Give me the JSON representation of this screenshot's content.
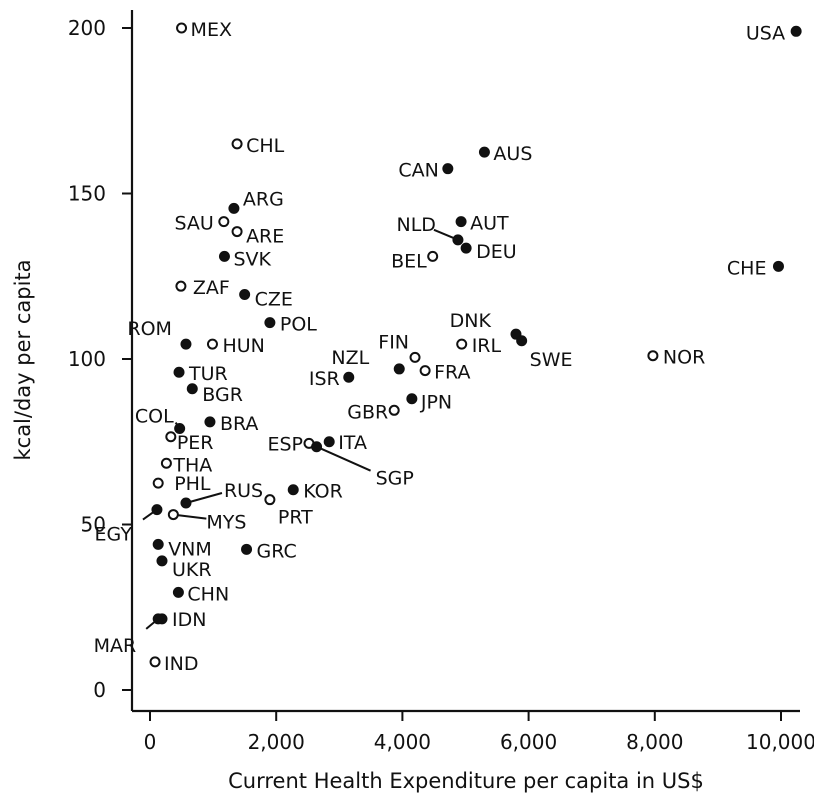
{
  "chart_data": {
    "type": "scatter",
    "title": "",
    "xlabel": "Current Health Expenditure per capita in US$",
    "ylabel": "kcal/day per capita",
    "xlim": [
      -300,
      10500
    ],
    "ylim": [
      -6,
      205
    ],
    "x_ticks": [
      0,
      2000,
      4000,
      6000,
      8000,
      10000
    ],
    "x_tick_labels": [
      "0",
      "2,000",
      "4,000",
      "6,000",
      "8,000",
      "10,000"
    ],
    "y_ticks": [
      0,
      50,
      100,
      150,
      200
    ],
    "y_tick_labels": [
      "0",
      "50",
      "100",
      "150",
      "200"
    ],
    "grid": false,
    "marker_styles": {
      "filled": "solid black circle",
      "hollow": "open circle"
    },
    "points": [
      {
        "label": "USA",
        "x": 10240,
        "y": 199,
        "filled": true
      },
      {
        "label": "MEX",
        "x": 500,
        "y": 200,
        "filled": false
      },
      {
        "label": "CHL",
        "x": 1380,
        "y": 165,
        "filled": false
      },
      {
        "label": "AUS",
        "x": 5300,
        "y": 162.5,
        "filled": true
      },
      {
        "label": "CAN",
        "x": 4720,
        "y": 157.5,
        "filled": true
      },
      {
        "label": "ARG",
        "x": 1330,
        "y": 145.5,
        "filled": true
      },
      {
        "label": "SAU",
        "x": 1170,
        "y": 141.5,
        "filled": false
      },
      {
        "label": "AUT",
        "x": 4930,
        "y": 141.5,
        "filled": true
      },
      {
        "label": "ARE",
        "x": 1380,
        "y": 138.5,
        "filled": false
      },
      {
        "label": "NLD",
        "x": 4880,
        "y": 136,
        "filled": true
      },
      {
        "label": "DEU",
        "x": 5010,
        "y": 133.5,
        "filled": true
      },
      {
        "label": "SVK",
        "x": 1180,
        "y": 131,
        "filled": true
      },
      {
        "label": "BEL",
        "x": 4480,
        "y": 131,
        "filled": false
      },
      {
        "label": "CHE",
        "x": 9960,
        "y": 128,
        "filled": true
      },
      {
        "label": "ZAF",
        "x": 490,
        "y": 122,
        "filled": false
      },
      {
        "label": "CZE",
        "x": 1500,
        "y": 119.5,
        "filled": true
      },
      {
        "label": "POL",
        "x": 1900,
        "y": 111,
        "filled": true
      },
      {
        "label": "DNK",
        "x": 5800,
        "y": 107.5,
        "filled": true
      },
      {
        "label": "SWE",
        "x": 5890,
        "y": 105.5,
        "filled": true
      },
      {
        "label": "ROM",
        "x": 570,
        "y": 104.5,
        "filled": true
      },
      {
        "label": "HUN",
        "x": 990,
        "y": 104.5,
        "filled": false
      },
      {
        "label": "IRL",
        "x": 4940,
        "y": 104.5,
        "filled": false
      },
      {
        "label": "NOR",
        "x": 7970,
        "y": 101,
        "filled": false
      },
      {
        "label": "FIN",
        "x": 4200,
        "y": 100.5,
        "filled": false
      },
      {
        "label": "NZL",
        "x": 3950,
        "y": 97,
        "filled": true
      },
      {
        "label": "FRA",
        "x": 4360,
        "y": 96.5,
        "filled": false
      },
      {
        "label": "TUR",
        "x": 460,
        "y": 96,
        "filled": true
      },
      {
        "label": "ISR",
        "x": 3150,
        "y": 94.5,
        "filled": true
      },
      {
        "label": "BGR",
        "x": 670,
        "y": 91,
        "filled": true
      },
      {
        "label": "JPN",
        "x": 4150,
        "y": 88,
        "filled": true
      },
      {
        "label": "GBR",
        "x": 3870,
        "y": 84.5,
        "filled": false
      },
      {
        "label": "BRA",
        "x": 950,
        "y": 81,
        "filled": true
      },
      {
        "label": "COL",
        "x": 470,
        "y": 79,
        "filled": true
      },
      {
        "label": "PER",
        "x": 330,
        "y": 76.5,
        "filled": false
      },
      {
        "label": "ITA",
        "x": 2840,
        "y": 75,
        "filled": true
      },
      {
        "label": "ESP",
        "x": 2520,
        "y": 74.5,
        "filled": false
      },
      {
        "label": "SGP",
        "x": 2640,
        "y": 73.5,
        "filled": true
      },
      {
        "label": "THA",
        "x": 260,
        "y": 68.5,
        "filled": false
      },
      {
        "label": "PHL",
        "x": 130,
        "y": 62.5,
        "filled": false
      },
      {
        "label": "KOR",
        "x": 2270,
        "y": 60.5,
        "filled": true
      },
      {
        "label": "PRT",
        "x": 1900,
        "y": 57.5,
        "filled": false
      },
      {
        "label": "RUS",
        "x": 570,
        "y": 56.5,
        "filled": true
      },
      {
        "label": "EGY",
        "x": 110,
        "y": 54.5,
        "filled": true
      },
      {
        "label": "MYS",
        "x": 370,
        "y": 53,
        "filled": false
      },
      {
        "label": "VNM",
        "x": 130,
        "y": 44,
        "filled": true
      },
      {
        "label": "GRC",
        "x": 1530,
        "y": 42.5,
        "filled": true
      },
      {
        "label": "UKR",
        "x": 190,
        "y": 39,
        "filled": true
      },
      {
        "label": "CHN",
        "x": 450,
        "y": 29.5,
        "filled": true
      },
      {
        "label": "IDN",
        "x": 190,
        "y": 21.5,
        "filled": true
      },
      {
        "label": "MAR",
        "x": 130,
        "y": 21.5,
        "filled": true
      },
      {
        "label": "IND",
        "x": 80,
        "y": 8.5,
        "filled": false
      }
    ]
  }
}
